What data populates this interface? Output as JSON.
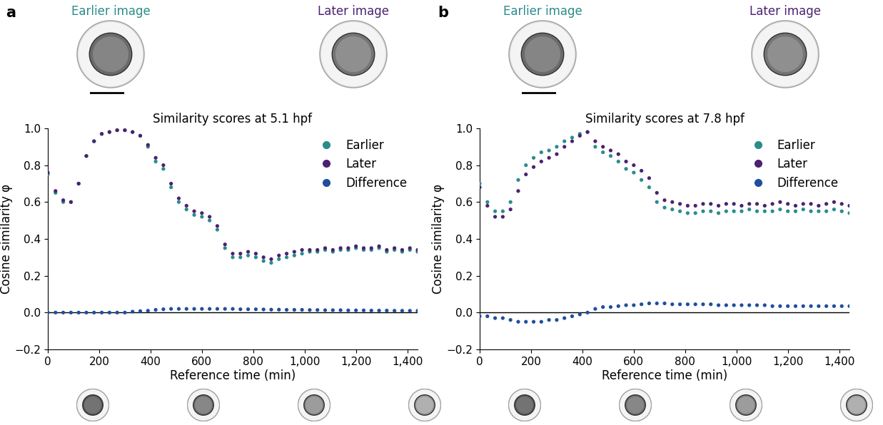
{
  "chart_data": [
    {
      "type": "scatter",
      "panel_label": "a",
      "image_labels": [
        "Earlier image",
        "Later image"
      ],
      "title": "Similarity scores at 5.1 hpf",
      "x_label": "Reference time (min)",
      "y_label": "Cosine similarity φ",
      "x": [
        0,
        30,
        60,
        90,
        120,
        150,
        180,
        210,
        240,
        270,
        300,
        330,
        360,
        390,
        420,
        450,
        480,
        510,
        540,
        570,
        600,
        630,
        660,
        690,
        720,
        750,
        780,
        810,
        840,
        870,
        900,
        930,
        960,
        990,
        1020,
        1050,
        1080,
        1110,
        1140,
        1170,
        1200,
        1230,
        1260,
        1290,
        1320,
        1350,
        1380,
        1410,
        1440
      ],
      "series": [
        {
          "name": "Earlier",
          "color": "#2a8c8c",
          "marker": "circle",
          "values": [
            0.75,
            0.65,
            0.6,
            0.6,
            0.7,
            0.85,
            0.93,
            0.97,
            0.98,
            0.99,
            0.99,
            0.98,
            0.96,
            0.9,
            0.82,
            0.78,
            0.68,
            0.6,
            0.56,
            0.53,
            0.52,
            0.5,
            0.45,
            0.35,
            0.3,
            0.3,
            0.31,
            0.3,
            0.28,
            0.27,
            0.29,
            0.3,
            0.31,
            0.32,
            0.33,
            0.33,
            0.34,
            0.33,
            0.34,
            0.34,
            0.35,
            0.34,
            0.34,
            0.35,
            0.33,
            0.34,
            0.33,
            0.34,
            0.33
          ]
        },
        {
          "name": "Later",
          "color": "#4b2270",
          "marker": "circle",
          "values": [
            0.76,
            0.66,
            0.61,
            0.6,
            0.7,
            0.85,
            0.93,
            0.97,
            0.98,
            0.99,
            0.99,
            0.98,
            0.96,
            0.91,
            0.84,
            0.8,
            0.7,
            0.62,
            0.58,
            0.55,
            0.54,
            0.52,
            0.47,
            0.37,
            0.32,
            0.32,
            0.33,
            0.32,
            0.3,
            0.29,
            0.31,
            0.32,
            0.33,
            0.34,
            0.34,
            0.34,
            0.35,
            0.34,
            0.35,
            0.35,
            0.36,
            0.35,
            0.35,
            0.36,
            0.34,
            0.35,
            0.34,
            0.35,
            0.34
          ]
        },
        {
          "name": "Difference",
          "color": "#1f4e9c",
          "marker": "circle",
          "values": [
            0,
            0,
            0,
            0,
            0,
            0,
            0,
            0,
            0,
            0,
            0,
            0.005,
            0.008,
            0.01,
            0.015,
            0.018,
            0.02,
            0.02,
            0.02,
            0.02,
            0.02,
            0.02,
            0.02,
            0.02,
            0.02,
            0.018,
            0.018,
            0.018,
            0.017,
            0.016,
            0.016,
            0.015,
            0.015,
            0.015,
            0.014,
            0.014,
            0.013,
            0.013,
            0.013,
            0.012,
            0.012,
            0.012,
            0.011,
            0.011,
            0.011,
            0.01,
            0.01,
            0.01,
            0.01
          ]
        }
      ],
      "xlim": [
        0,
        1440
      ],
      "xticks": [
        0,
        200,
        400,
        600,
        800,
        {
          "value": 1000,
          "label": "1,000"
        },
        {
          "value": 1200,
          "label": "1,200"
        },
        {
          "value": 1400,
          "label": "1,400"
        }
      ],
      "ylim": [
        -0.2,
        1.0
      ],
      "yticks": [
        {
          "value": -0.2,
          "label": "−0.2"
        },
        {
          "value": 0,
          "label": "0.0"
        },
        0.2,
        0.4,
        0.6,
        0.8,
        {
          "value": 1.0,
          "label": "1.0"
        }
      ],
      "legend": "upper right"
    },
    {
      "type": "scatter",
      "panel_label": "b",
      "image_labels": [
        "Earlier image",
        "Later image"
      ],
      "title": "Similarity scores at 7.8 hpf",
      "x_label": "Reference time (min)",
      "y_label": "Cosine similarity φ",
      "x": [
        0,
        30,
        60,
        90,
        120,
        150,
        180,
        210,
        240,
        270,
        300,
        330,
        360,
        390,
        420,
        450,
        480,
        510,
        540,
        570,
        600,
        630,
        660,
        690,
        720,
        750,
        780,
        810,
        840,
        870,
        900,
        930,
        960,
        990,
        1020,
        1050,
        1080,
        1110,
        1140,
        1170,
        1200,
        1230,
        1260,
        1290,
        1320,
        1350,
        1380,
        1410,
        1440
      ],
      "series": [
        {
          "name": "Earlier",
          "color": "#2a8c8c",
          "marker": "circle",
          "values": [
            0.7,
            0.6,
            0.55,
            0.55,
            0.6,
            0.72,
            0.8,
            0.84,
            0.87,
            0.88,
            0.9,
            0.93,
            0.95,
            0.97,
            0.98,
            0.9,
            0.87,
            0.85,
            0.82,
            0.78,
            0.76,
            0.72,
            0.68,
            0.6,
            0.57,
            0.56,
            0.55,
            0.54,
            0.54,
            0.55,
            0.55,
            0.54,
            0.55,
            0.55,
            0.55,
            0.56,
            0.55,
            0.55,
            0.55,
            0.56,
            0.55,
            0.55,
            0.56,
            0.55,
            0.55,
            0.55,
            0.56,
            0.55,
            0.54
          ]
        },
        {
          "name": "Later",
          "color": "#4b2270",
          "marker": "circle",
          "values": [
            0.68,
            0.58,
            0.52,
            0.52,
            0.56,
            0.66,
            0.75,
            0.79,
            0.82,
            0.84,
            0.86,
            0.9,
            0.93,
            0.96,
            0.98,
            0.93,
            0.9,
            0.88,
            0.86,
            0.82,
            0.8,
            0.77,
            0.73,
            0.65,
            0.61,
            0.6,
            0.59,
            0.58,
            0.58,
            0.59,
            0.59,
            0.58,
            0.59,
            0.59,
            0.58,
            0.59,
            0.59,
            0.58,
            0.59,
            0.6,
            0.59,
            0.58,
            0.59,
            0.59,
            0.58,
            0.59,
            0.6,
            0.59,
            0.58
          ]
        },
        {
          "name": "Difference",
          "color": "#1f4e9c",
          "marker": "circle",
          "values": [
            -0.02,
            -0.02,
            -0.03,
            -0.03,
            -0.04,
            -0.05,
            -0.05,
            -0.05,
            -0.05,
            -0.04,
            -0.04,
            -0.03,
            -0.02,
            -0.01,
            0.0,
            0.02,
            0.03,
            0.03,
            0.035,
            0.04,
            0.04,
            0.045,
            0.05,
            0.05,
            0.05,
            0.045,
            0.045,
            0.045,
            0.045,
            0.045,
            0.045,
            0.04,
            0.04,
            0.04,
            0.04,
            0.04,
            0.04,
            0.04,
            0.035,
            0.035,
            0.035,
            0.035,
            0.035,
            0.035,
            0.035,
            0.035,
            0.035,
            0.035,
            0.035
          ]
        }
      ],
      "xlim": [
        0,
        1440
      ],
      "xticks": [
        0,
        200,
        400,
        600,
        800,
        {
          "value": 1000,
          "label": "1,000"
        },
        {
          "value": 1200,
          "label": "1,200"
        },
        {
          "value": 1400,
          "label": "1,400"
        }
      ],
      "ylim": [
        -0.2,
        1.0
      ],
      "yticks": [
        {
          "value": -0.2,
          "label": "−0.2"
        },
        {
          "value": 0,
          "label": "0.0"
        },
        0.2,
        0.4,
        0.6,
        0.8,
        {
          "value": 1.0,
          "label": "1.0"
        }
      ],
      "legend": "upper right"
    }
  ]
}
